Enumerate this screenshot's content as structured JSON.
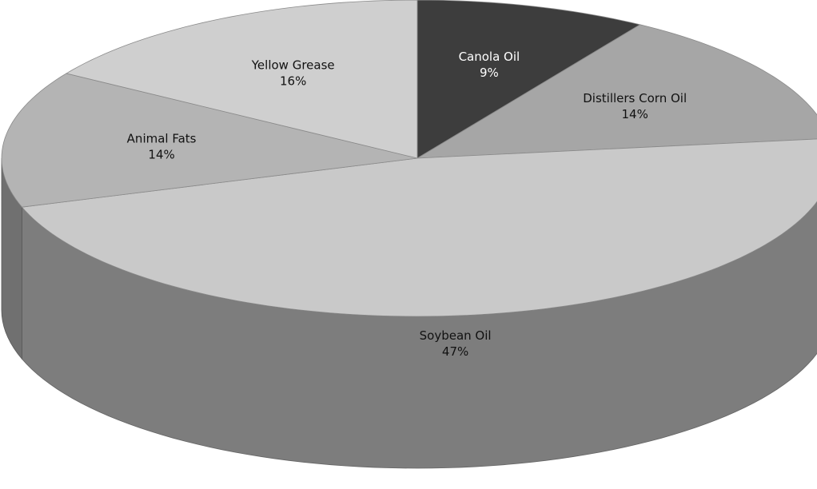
{
  "chart_data": {
    "type": "pie",
    "style": "3d",
    "start_angle_degrees": 90,
    "direction": "clockwise",
    "slices": [
      {
        "label": "Canola Oil",
        "value": 9,
        "value_label": "9%",
        "color": "#3d3d3d"
      },
      {
        "label": "Distillers Corn Oil",
        "value": 14,
        "value_label": "14%",
        "color": "#a6a6a6"
      },
      {
        "label": "Soybean Oil",
        "value": 47,
        "value_label": "47%",
        "color": "#c9c9c9"
      },
      {
        "label": "Animal Fats",
        "value": 14,
        "value_label": "14%",
        "color": "#b4b4b4"
      },
      {
        "label": "Yellow Grease",
        "value": 16,
        "value_label": "16%",
        "color": "#cfcfcf"
      }
    ],
    "legend": "none",
    "data_labels": "inside"
  }
}
